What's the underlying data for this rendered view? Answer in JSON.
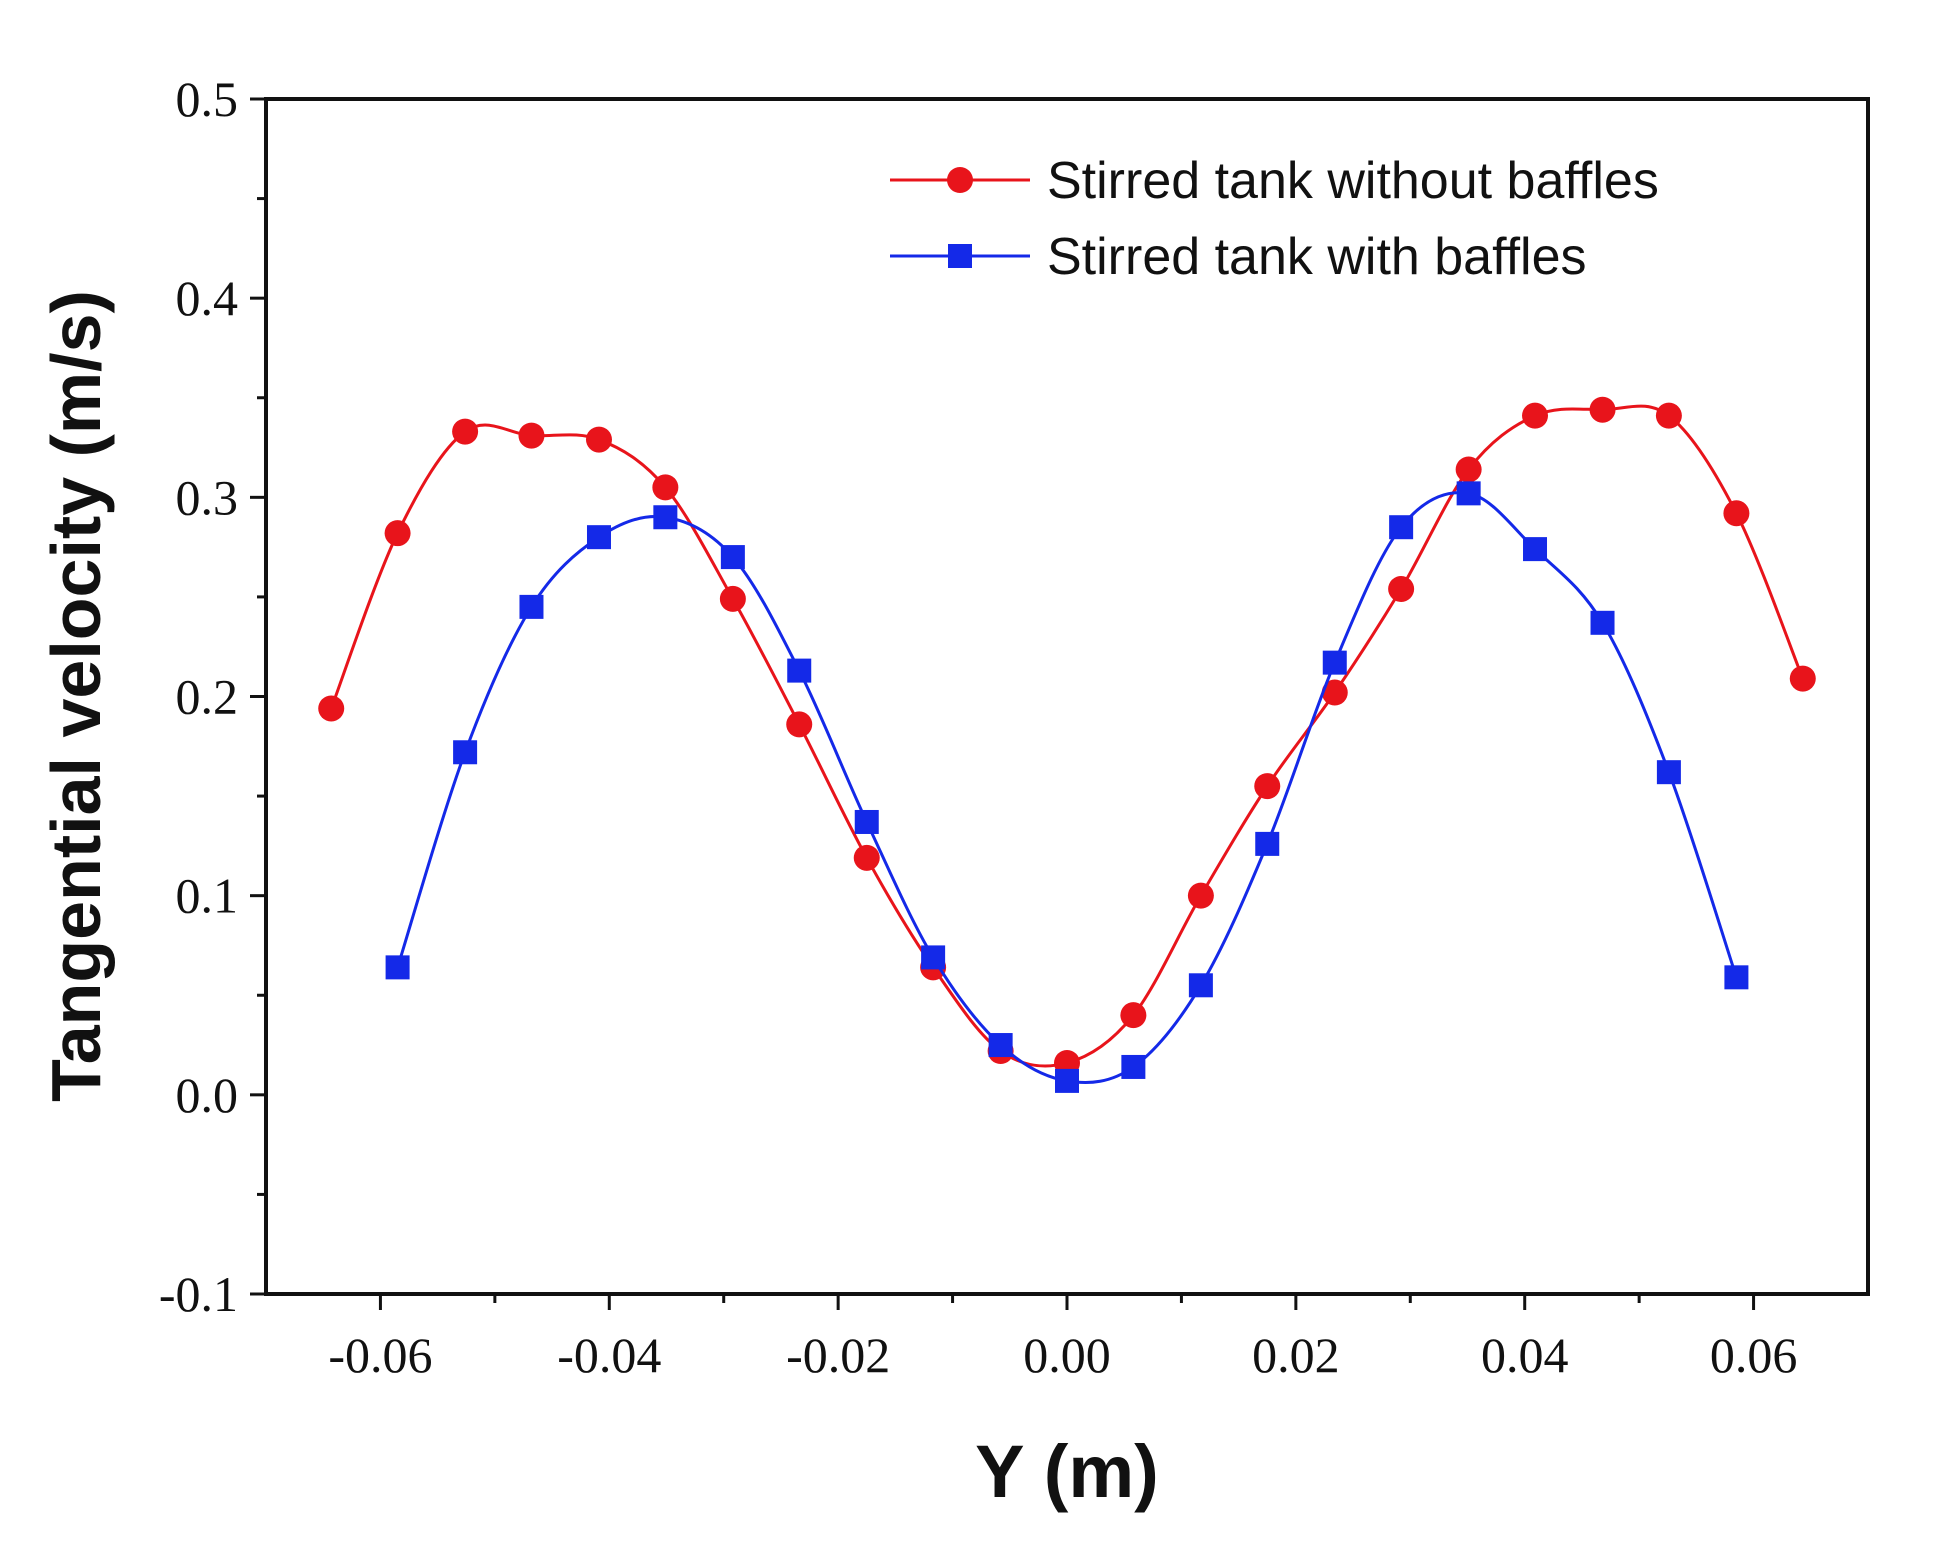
{
  "chart_data": {
    "type": "line",
    "xlabel": "Y (m)",
    "ylabel": "Tangential velocity (m/s)",
    "xlim": [
      -0.07,
      0.07
    ],
    "ylim": [
      -0.1,
      0.5
    ],
    "x_ticks": [
      -0.06,
      -0.04,
      -0.02,
      0.0,
      0.02,
      0.04,
      0.06
    ],
    "x_tick_labels": [
      "-0.06",
      "-0.04",
      "-0.02",
      "0.00",
      "0.02",
      "0.04",
      "0.06"
    ],
    "y_ticks": [
      -0.1,
      0.0,
      0.1,
      0.2,
      0.3,
      0.4,
      0.5
    ],
    "y_tick_labels": [
      "-0.1",
      "0.0",
      "0.1",
      "0.2",
      "0.3",
      "0.4",
      "0.5"
    ],
    "grid": false,
    "legend_position": "top-right",
    "series": [
      {
        "name": "Stirred tank without baffles",
        "color": "#e8141b",
        "marker": "circle",
        "x": [
          -0.0643,
          -0.0585,
          -0.0526,
          -0.0468,
          -0.0409,
          -0.0351,
          -0.0292,
          -0.0234,
          -0.0175,
          -0.0117,
          -0.0058,
          0.0,
          0.0058,
          0.0117,
          0.0175,
          0.0234,
          0.0292,
          0.0351,
          0.0409,
          0.0468,
          0.0526,
          0.0585,
          0.0643
        ],
        "values": [
          0.194,
          0.282,
          0.333,
          0.331,
          0.329,
          0.305,
          0.249,
          0.186,
          0.119,
          0.064,
          0.022,
          0.016,
          0.04,
          0.1,
          0.155,
          0.202,
          0.254,
          0.314,
          0.341,
          0.344,
          0.341,
          0.292,
          0.209
        ]
      },
      {
        "name": "Stirred tank with baffles",
        "color": "#1429e8",
        "marker": "square",
        "x": [
          -0.0585,
          -0.0526,
          -0.0468,
          -0.0409,
          -0.0351,
          -0.0292,
          -0.0234,
          -0.0175,
          -0.0117,
          -0.0058,
          0.0,
          0.0058,
          0.0117,
          0.0175,
          0.0234,
          0.0292,
          0.0351,
          0.0409,
          0.0468,
          0.0526,
          0.0585
        ],
        "values": [
          0.064,
          0.172,
          0.245,
          0.28,
          0.29,
          0.27,
          0.213,
          0.137,
          0.069,
          0.025,
          0.007,
          0.014,
          0.055,
          0.126,
          0.217,
          0.285,
          0.302,
          0.274,
          0.237,
          0.162,
          0.059
        ]
      }
    ]
  }
}
